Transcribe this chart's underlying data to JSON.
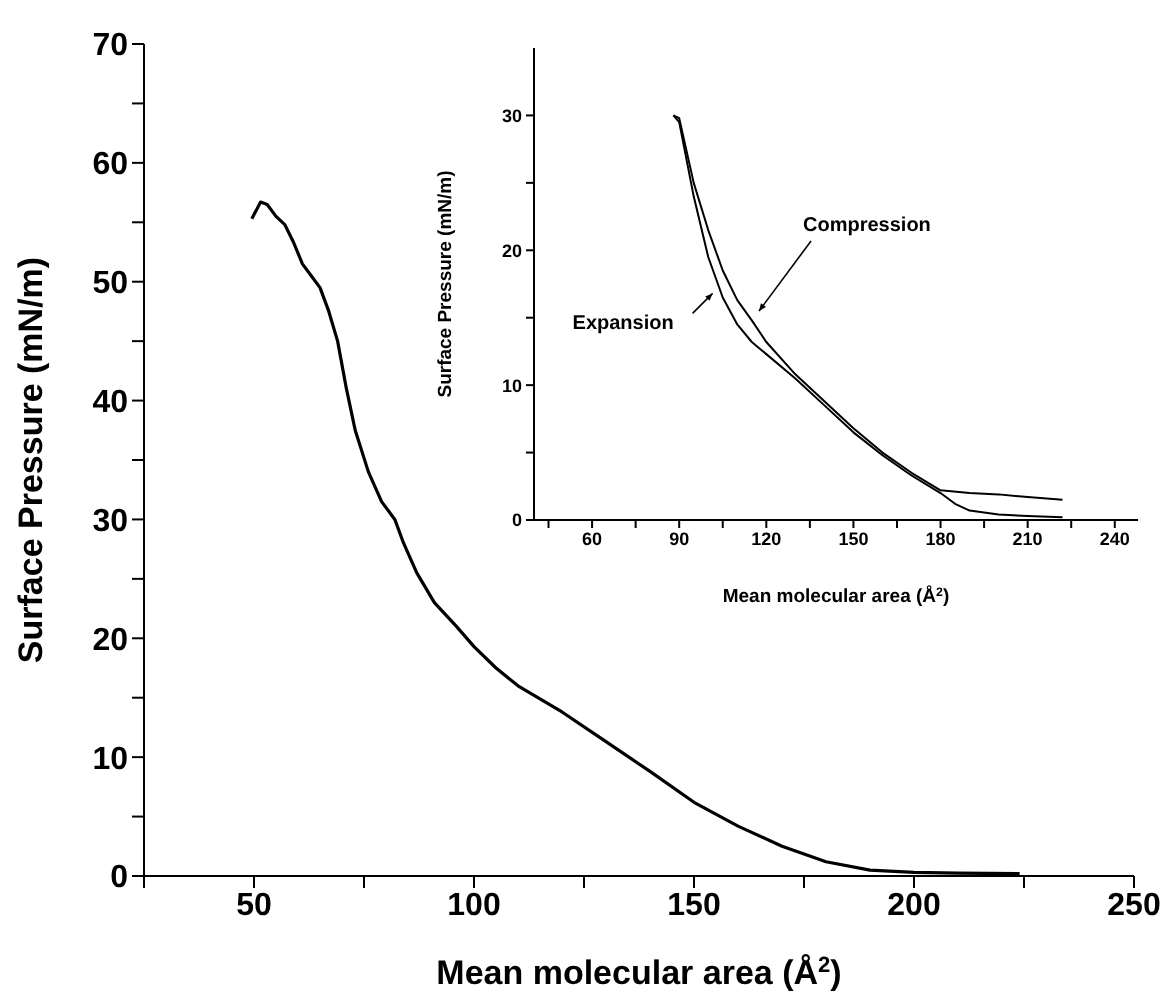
{
  "chart_data": [
    {
      "type": "line",
      "xlabel": "Mean molecular area (Å$^{2}$)",
      "ylabel": "Surface Pressure (mN/m)",
      "xlim": [
        25,
        250
      ],
      "ylim": [
        0,
        70
      ],
      "xticks": [
        {
          "value": 25,
          "label": null
        },
        50,
        {
          "value": 75,
          "label": null
        },
        100,
        {
          "value": 125,
          "label": null
        },
        150,
        {
          "value": 175,
          "label": null
        },
        200,
        {
          "value": 225,
          "label": null
        },
        250
      ],
      "yticks": [
        0,
        {
          "value": 5,
          "label": null
        },
        10,
        {
          "value": 15,
          "label": null
        },
        20,
        {
          "value": 25,
          "label": null
        },
        30,
        {
          "value": 35,
          "label": null
        },
        40,
        {
          "value": 45,
          "label": null
        },
        50,
        {
          "value": 55,
          "label": null
        },
        60,
        {
          "value": 65,
          "label": null
        },
        70
      ],
      "series": [
        {
          "color": "#000000",
          "x": [
            49.5,
            51.5,
            53,
            55,
            57,
            59,
            61,
            63,
            65,
            67,
            69,
            71,
            73,
            76,
            79,
            82,
            84,
            87,
            91,
            96,
            100,
            105,
            110,
            120,
            130,
            140,
            150,
            160,
            170,
            180,
            190,
            200,
            210,
            224
          ],
          "values": [
            55.3,
            56.7,
            56.5,
            55.5,
            54.8,
            53.3,
            51.5,
            50.5,
            49.5,
            47.5,
            45,
            41,
            37.5,
            34,
            31.5,
            30,
            28,
            25.5,
            23,
            21,
            19.3,
            17.5,
            16,
            13.8,
            11.3,
            8.8,
            6.2,
            4.2,
            2.5,
            1.2,
            0.5,
            0.3,
            0.25,
            0.2
          ]
        }
      ]
    },
    {
      "type": "line",
      "xlabel": "Mean molecular area (Å$^{2}$)",
      "ylabel": "Surface Pressure (mN/m)",
      "xlim": [
        40,
        248
      ],
      "ylim": [
        0,
        35
      ],
      "xticks": [
        {
          "value": 45,
          "label": null
        },
        60,
        {
          "value": 75,
          "label": null
        },
        90,
        {
          "value": 105,
          "label": null
        },
        120,
        {
          "value": 135,
          "label": null
        },
        150,
        {
          "value": 165,
          "label": null
        },
        180,
        {
          "value": 195,
          "label": null
        },
        210,
        {
          "value": 225,
          "label": null
        },
        240
      ],
      "yticks": [
        0,
        {
          "value": 5,
          "label": null
        },
        10,
        {
          "value": 15,
          "label": null
        },
        20,
        {
          "value": 25,
          "label": null
        },
        30
      ],
      "series": [
        {
          "color": "#000000",
          "x": [
            88,
            90,
            95,
            100,
            105,
            110,
            115,
            120,
            130,
            140,
            150,
            160,
            170,
            180,
            190,
            200,
            210,
            222
          ],
          "values": [
            30,
            29.8,
            25,
            21.5,
            18.5,
            16.3,
            14.8,
            13.2,
            10.8,
            8.8,
            6.8,
            5,
            3.5,
            2.2,
            2,
            1.9,
            1.7,
            1.5
          ]
        },
        {
          "color": "#000000",
          "x": [
            88,
            90,
            95,
            100,
            105,
            110,
            115,
            120,
            130,
            140,
            150,
            160,
            170,
            180,
            185,
            190,
            200,
            210,
            222
          ],
          "values": [
            30,
            29.5,
            24,
            19.5,
            16.5,
            14.5,
            13.2,
            12.3,
            10.5,
            8.5,
            6.5,
            4.8,
            3.3,
            2,
            1.2,
            0.7,
            0.4,
            0.3,
            0.2
          ]
        }
      ],
      "annotations": [
        {
          "text": "Compression",
          "x": 117.5,
          "y": 15.5
        },
        {
          "text": "Expansion",
          "x": 101.5,
          "y": 16.8
        }
      ]
    }
  ]
}
